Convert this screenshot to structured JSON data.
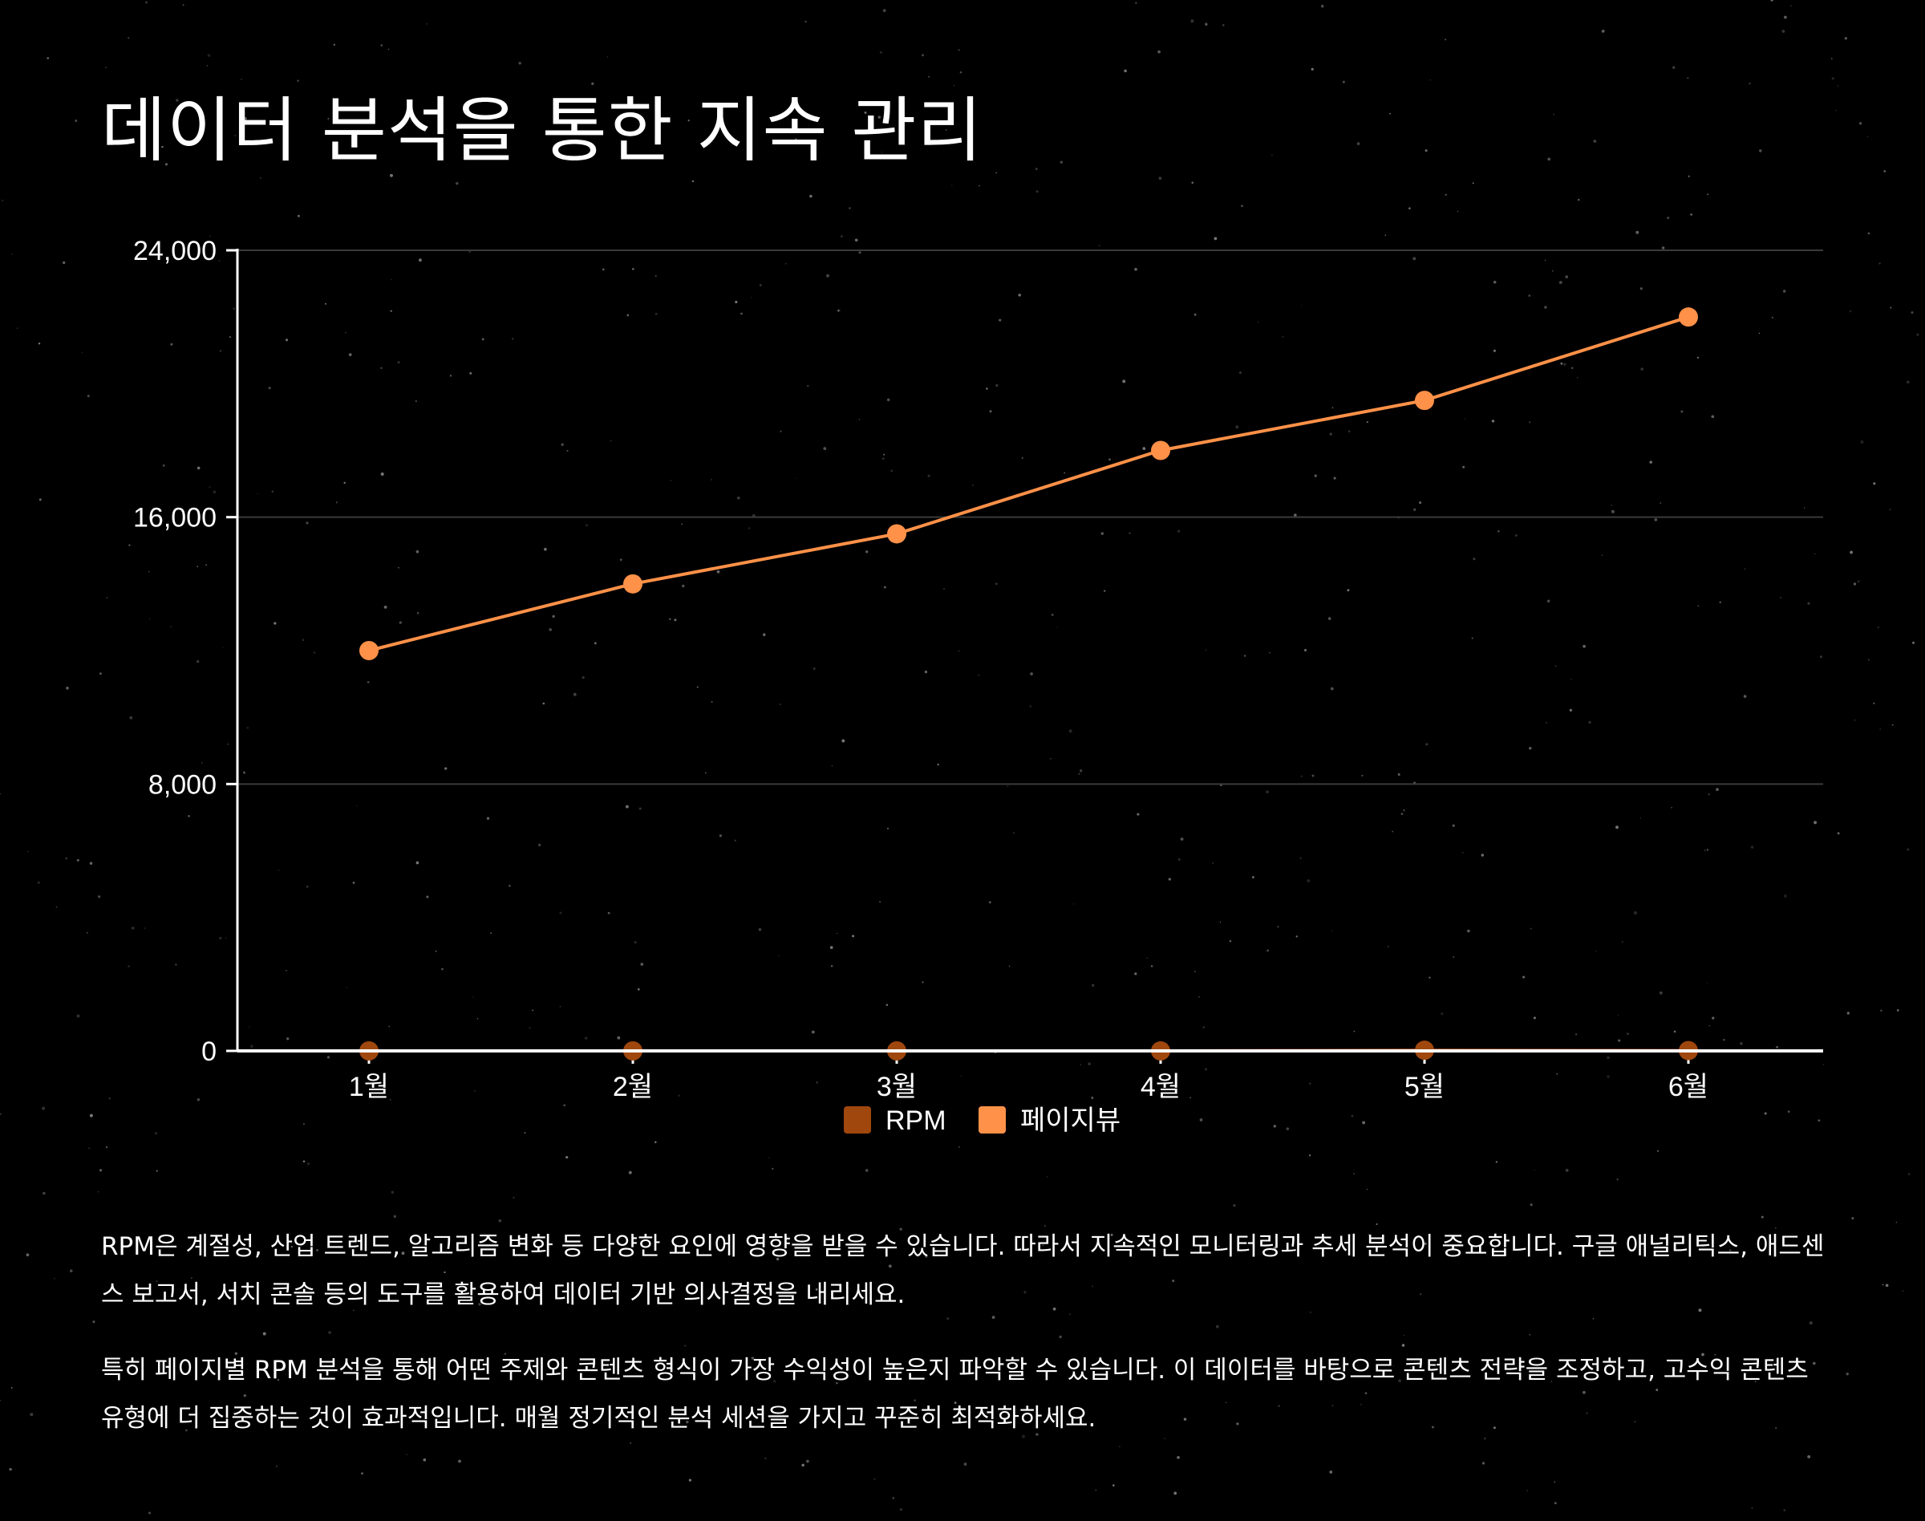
{
  "title": "데이터 분석을 통한 지속 관리",
  "colors": {
    "background": "#000000",
    "rpm": "#a0470e",
    "pageviews": "#ff9148",
    "grid": "#3a3a3a",
    "axis": "#ffffff"
  },
  "chart_data": {
    "type": "line",
    "categories": [
      "1월",
      "2월",
      "3월",
      "4월",
      "5월",
      "6월"
    ],
    "series": [
      {
        "name": "RPM",
        "values": [
          0,
          0,
          0,
          0,
          20,
          10
        ]
      },
      {
        "name": "페이지뷰",
        "values": [
          12000,
          14000,
          15500,
          18000,
          19500,
          22000
        ]
      }
    ],
    "ylim": [
      0,
      24000
    ],
    "yticks": [
      "0",
      "8,000",
      "16,000",
      "24,000"
    ],
    "ytick_values": [
      0,
      8000,
      16000,
      24000
    ],
    "grid": true,
    "legend_position": "bottom-center"
  },
  "paragraphs": [
    "RPM은 계절성, 산업 트렌드, 알고리즘 변화 등 다양한 요인에 영향을 받을 수 있습니다. 따라서 지속적인 모니터링과 추세 분석이 중요합니다. 구글 애널리틱스, 애드센스 보고서, 서치 콘솔 등의 도구를 활용하여 데이터 기반 의사결정을 내리세요.",
    "특히 페이지별 RPM 분석을 통해 어떤 주제와 콘텐츠 형식이 가장 수익성이 높은지 파악할 수 있습니다. 이 데이터를 바탕으로 콘텐츠 전략을 조정하고, 고수익 콘텐츠 유형에 더 집중하는 것이 효과적입니다. 매월 정기적인 분석 세션을 가지고 꾸준히 최적화하세요."
  ]
}
